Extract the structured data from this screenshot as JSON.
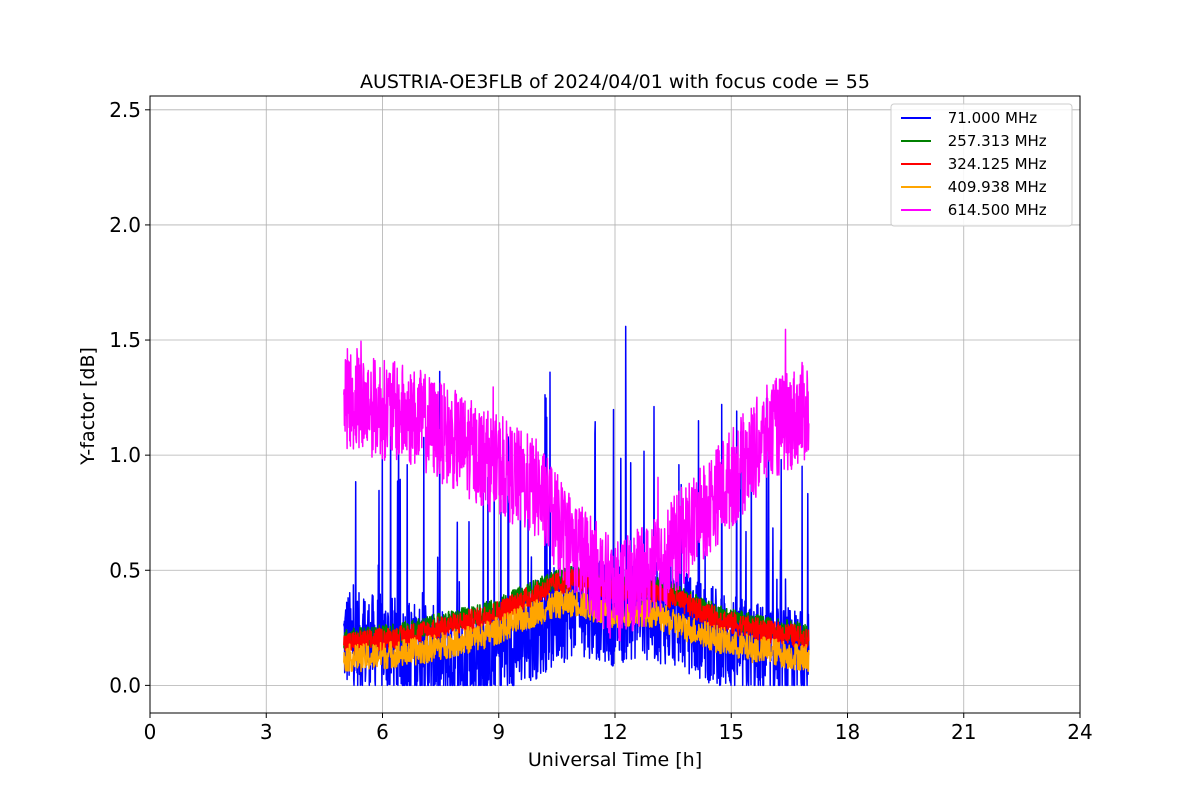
{
  "chart_data": {
    "type": "line",
    "title": "AUSTRIA-OE3FLB of 2024/04/01 with focus code = 55",
    "xlabel": "Universal Time [h]",
    "ylabel": "Y-factor [dB]",
    "xlim": [
      0,
      24
    ],
    "ylim": [
      -0.12,
      2.56
    ],
    "xticks": [
      0,
      3,
      6,
      9,
      12,
      15,
      18,
      21,
      24
    ],
    "yticks": [
      0.0,
      0.5,
      1.0,
      1.5,
      2.0,
      2.5
    ],
    "xtick_labels": [
      "0",
      "3",
      "6",
      "9",
      "12",
      "15",
      "18",
      "21",
      "24"
    ],
    "ytick_labels": [
      "0.0",
      "0.5",
      "1.0",
      "1.5",
      "2.0",
      "2.5"
    ],
    "grid": true,
    "legend_position": "top-right",
    "series": [
      {
        "name": " 71.000 MHz",
        "color": "#0000ff",
        "x": [
          5.0,
          5.5,
          6.0,
          6.5,
          7.0,
          7.5,
          8.0,
          8.5,
          9.0,
          9.5,
          10.0,
          10.5,
          11.0,
          11.5,
          12.0,
          12.5,
          13.0,
          13.5,
          14.0,
          14.5,
          15.0,
          15.5,
          16.0,
          16.5,
          17.0
        ],
        "y": [
          0.2,
          0.18,
          0.18,
          0.16,
          0.14,
          0.12,
          0.11,
          0.12,
          0.15,
          0.2,
          0.25,
          0.3,
          0.35,
          0.33,
          0.3,
          0.33,
          0.32,
          0.3,
          0.26,
          0.22,
          0.18,
          0.15,
          0.13,
          0.12,
          0.1
        ]
      },
      {
        "name": " 257.313 MHz",
        "color": "#008000",
        "x": [
          5.0,
          5.5,
          6.0,
          6.5,
          7.0,
          7.5,
          8.0,
          8.5,
          9.0,
          9.5,
          10.0,
          10.5,
          11.0,
          11.5,
          12.0,
          12.5,
          13.0,
          13.5,
          14.0,
          14.5,
          15.0,
          15.5,
          16.0,
          16.5,
          17.0
        ],
        "y": [
          0.2,
          0.21,
          0.22,
          0.23,
          0.25,
          0.27,
          0.29,
          0.31,
          0.34,
          0.38,
          0.42,
          0.46,
          0.48,
          0.45,
          0.42,
          0.44,
          0.43,
          0.4,
          0.36,
          0.32,
          0.29,
          0.27,
          0.25,
          0.24,
          0.22
        ]
      },
      {
        "name": " 324.125 MHz",
        "color": "#ff0000",
        "x": [
          5.0,
          5.5,
          6.0,
          6.5,
          7.0,
          7.5,
          8.0,
          8.5,
          9.0,
          9.5,
          10.0,
          10.5,
          11.0,
          11.5,
          12.0,
          12.5,
          13.0,
          13.5,
          14.0,
          14.5,
          15.0,
          15.5,
          16.0,
          16.5,
          17.0
        ],
        "y": [
          0.18,
          0.19,
          0.2,
          0.21,
          0.23,
          0.25,
          0.27,
          0.29,
          0.32,
          0.36,
          0.4,
          0.44,
          0.46,
          0.43,
          0.4,
          0.42,
          0.41,
          0.38,
          0.34,
          0.3,
          0.27,
          0.25,
          0.23,
          0.22,
          0.2
        ]
      },
      {
        "name": " 409.938 MHz",
        "color": "#ffa500",
        "x": [
          5.0,
          5.5,
          6.0,
          6.5,
          7.0,
          7.5,
          8.0,
          8.5,
          9.0,
          9.5,
          10.0,
          10.5,
          11.0,
          11.5,
          12.0,
          12.5,
          13.0,
          13.5,
          14.0,
          14.5,
          15.0,
          15.5,
          16.0,
          16.5,
          17.0
        ],
        "y": [
          0.12,
          0.12,
          0.13,
          0.14,
          0.15,
          0.17,
          0.19,
          0.21,
          0.24,
          0.28,
          0.32,
          0.35,
          0.36,
          0.33,
          0.3,
          0.32,
          0.31,
          0.27,
          0.24,
          0.21,
          0.18,
          0.16,
          0.15,
          0.13,
          0.12
        ]
      },
      {
        "name": " 614.500 MHz",
        "color": "#ff00ff",
        "x": [
          5.0,
          5.5,
          6.0,
          6.5,
          7.0,
          7.5,
          8.0,
          8.5,
          9.0,
          9.5,
          10.0,
          10.5,
          11.0,
          11.5,
          12.0,
          12.5,
          13.0,
          13.5,
          14.0,
          14.5,
          15.0,
          15.5,
          16.0,
          16.5,
          17.0
        ],
        "y": [
          1.25,
          1.22,
          1.2,
          1.18,
          1.15,
          1.1,
          1.05,
          1.0,
          0.95,
          0.9,
          0.85,
          0.7,
          0.6,
          0.5,
          0.4,
          0.45,
          0.5,
          0.6,
          0.7,
          0.8,
          0.9,
          1.0,
          1.1,
          1.15,
          1.2
        ]
      }
    ]
  }
}
